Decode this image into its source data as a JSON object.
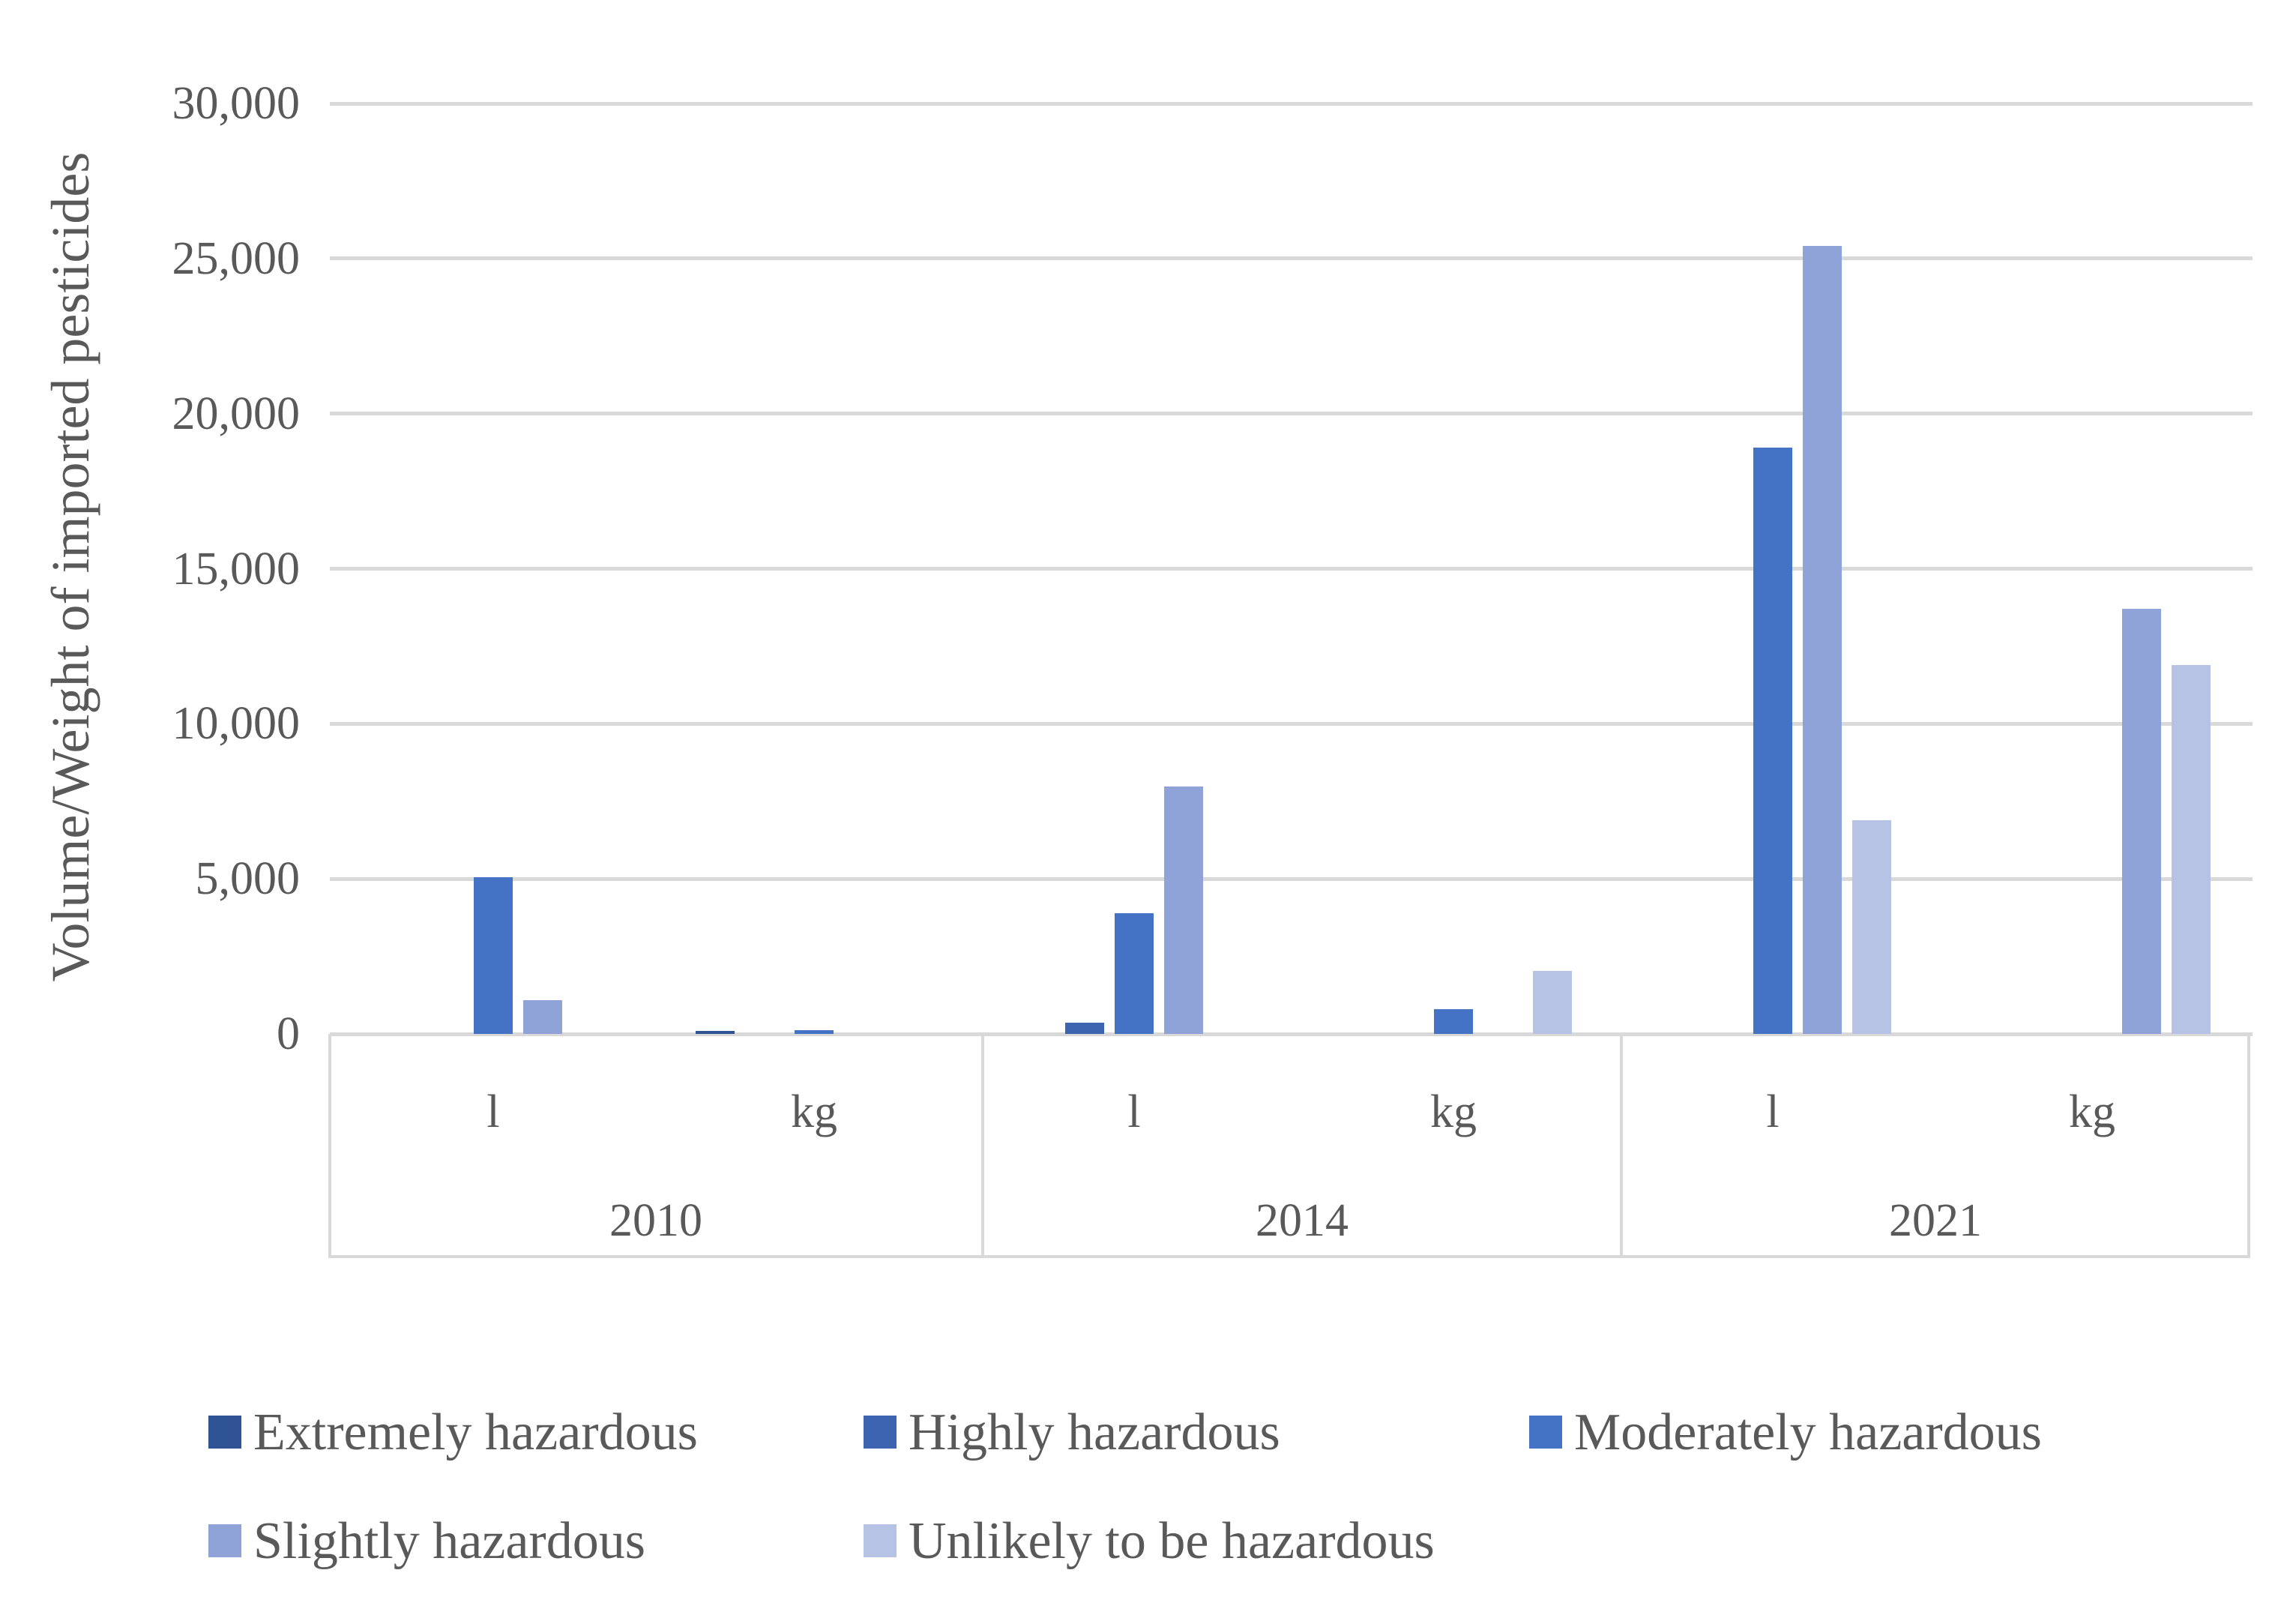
{
  "chart_data": {
    "type": "bar",
    "title": "",
    "ylabel": "Volume/Weight of imported pesticides",
    "xlabel": "",
    "ylim": [
      0,
      30000
    ],
    "ytick_interval": 5000,
    "yticks": [
      {
        "value": 30000,
        "label": "30,000"
      },
      {
        "value": 25000,
        "label": "25,000"
      },
      {
        "value": 20000,
        "label": "20,000"
      },
      {
        "value": 15000,
        "label": "15,000"
      },
      {
        "value": 10000,
        "label": "10,000"
      },
      {
        "value": 5000,
        "label": "5,000"
      },
      {
        "value": 0,
        "label": "0"
      }
    ],
    "grid": "horizontal-only",
    "gridline_color": "#d9d9d9",
    "axis_text_color": "#595959",
    "legend_position": "bottom-two-rows",
    "series": [
      {
        "name": "Extremely hazardous",
        "color": "#2F5394"
      },
      {
        "name": "Highly hazardous",
        "color": "#3C64B1"
      },
      {
        "name": "Moderately hazardous",
        "color": "#4472C4"
      },
      {
        "name": "Slightly hazardous",
        "color": "#8FA3D8"
      },
      {
        "name": "Unlikely to be hazardous",
        "color": "#B6C3E5"
      }
    ],
    "years": [
      "2010",
      "2014",
      "2021"
    ],
    "units": [
      "l",
      "kg"
    ],
    "groups": [
      {
        "year": "2010",
        "unit": "l",
        "values": [
          0,
          0,
          5050,
          1090,
          0
        ]
      },
      {
        "year": "2010",
        "unit": "kg",
        "values": [
          100,
          0,
          110,
          0,
          0
        ]
      },
      {
        "year": "2014",
        "unit": "l",
        "values": [
          0,
          360,
          3900,
          7980,
          0
        ]
      },
      {
        "year": "2014",
        "unit": "kg",
        "values": [
          0,
          0,
          800,
          0,
          2030
        ]
      },
      {
        "year": "2021",
        "unit": "l",
        "values": [
          0,
          0,
          18900,
          25400,
          6900
        ]
      },
      {
        "year": "2021",
        "unit": "kg",
        "values": [
          0,
          0,
          0,
          13700,
          11900
        ]
      }
    ]
  }
}
